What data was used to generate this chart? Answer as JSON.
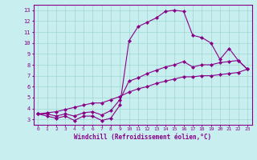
{
  "xlabel": "Windchill (Refroidissement éolien,°C)",
  "background_color": "#c8eef0",
  "grid_color": "#a0d8d0",
  "line_color": "#880088",
  "hours": [
    0,
    1,
    2,
    3,
    4,
    5,
    6,
    7,
    8,
    9,
    10,
    11,
    12,
    13,
    14,
    15,
    16,
    17,
    18,
    19,
    20,
    21,
    22,
    23
  ],
  "series1": [
    3.5,
    3.3,
    3.1,
    3.3,
    2.9,
    3.3,
    3.3,
    2.9,
    3.1,
    4.3,
    10.2,
    11.5,
    11.9,
    12.3,
    12.9,
    13.0,
    12.9,
    10.7,
    10.5,
    10.0,
    8.5,
    9.5,
    8.4,
    7.6
  ],
  "series2": [
    3.5,
    3.5,
    3.3,
    3.5,
    3.3,
    3.6,
    3.7,
    3.4,
    3.8,
    4.8,
    6.5,
    6.8,
    7.2,
    7.5,
    7.8,
    8.0,
    8.3,
    7.8,
    8.0,
    8.0,
    8.2,
    8.3,
    8.4,
    7.6
  ],
  "series3": [
    3.5,
    3.6,
    3.7,
    3.9,
    4.1,
    4.3,
    4.5,
    4.5,
    4.8,
    5.1,
    5.5,
    5.8,
    6.0,
    6.3,
    6.5,
    6.7,
    6.9,
    6.9,
    7.0,
    7.0,
    7.1,
    7.2,
    7.3,
    7.6
  ],
  "ylim": [
    2.5,
    13.5
  ],
  "yticks": [
    3,
    4,
    5,
    6,
    7,
    8,
    9,
    10,
    11,
    12,
    13
  ],
  "xlim": [
    -0.5,
    23.5
  ],
  "xticks": [
    0,
    1,
    2,
    3,
    4,
    5,
    6,
    7,
    8,
    9,
    10,
    11,
    12,
    13,
    14,
    15,
    16,
    17,
    18,
    19,
    20,
    21,
    22,
    23
  ]
}
